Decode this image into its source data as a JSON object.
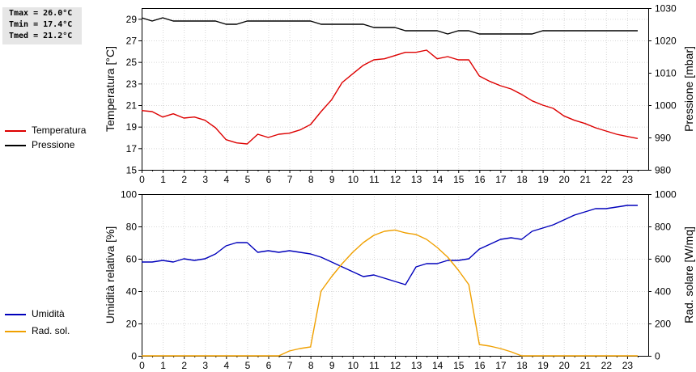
{
  "stats": {
    "tmax": "Tmax = 26.0°C",
    "tmin": "Tmin = 17.4°C",
    "tmed": "Tmed = 21.2°C"
  },
  "legend_top": [
    {
      "label": "Temperatura",
      "color": "#dd0000"
    },
    {
      "label": "Pressione",
      "color": "#000000"
    }
  ],
  "legend_bottom": [
    {
      "label": "Umidità",
      "color": "#0000bb"
    },
    {
      "label": "Rad. sol.",
      "color": "#f0a000"
    }
  ],
  "chart_data": [
    {
      "type": "line",
      "ylabel": "Temperatura [°C]",
      "y2label": "Pressione [mbar]",
      "xlim": [
        0,
        24
      ],
      "xticks": [
        "0",
        "1",
        "2",
        "3",
        "4",
        "5",
        "6",
        "7",
        "8",
        "9",
        "10",
        "11",
        "12",
        "13",
        "14",
        "15",
        "16",
        "17",
        "18",
        "19",
        "20",
        "21",
        "22",
        "23"
      ],
      "ylim": [
        15,
        30
      ],
      "yticks": [
        "15",
        "17",
        "19",
        "21",
        "23",
        "25",
        "27",
        "29"
      ],
      "y2lim": [
        980,
        1030
      ],
      "y2ticks": [
        "980",
        "990",
        "1000",
        "1010",
        "1020",
        "1030"
      ],
      "grid": true,
      "series": [
        {
          "name": "Temperatura",
          "axis": "left",
          "color": "#dd0000",
          "x": [
            0,
            0.5,
            1,
            1.5,
            2,
            2.5,
            3,
            3.5,
            4,
            4.5,
            5,
            5.5,
            6,
            6.5,
            7,
            7.5,
            8,
            8.5,
            9,
            9.5,
            10,
            10.5,
            11,
            11.5,
            12,
            12.5,
            13,
            13.5,
            14,
            14.5,
            15,
            15.5,
            16,
            16.5,
            17,
            17.5,
            18,
            18.5,
            19,
            19.5,
            20,
            20.5,
            21,
            21.5,
            22,
            22.5,
            23,
            23.5
          ],
          "y": [
            20.5,
            20.4,
            19.9,
            20.2,
            19.8,
            19.9,
            19.6,
            18.9,
            17.8,
            17.5,
            17.4,
            18.3,
            18.0,
            18.3,
            18.4,
            18.7,
            19.2,
            20.4,
            21.5,
            23.1,
            23.9,
            24.7,
            25.2,
            25.3,
            25.6,
            25.9,
            25.9,
            26.1,
            25.3,
            25.5,
            25.2,
            25.2,
            23.7,
            23.2,
            22.8,
            22.5,
            22.0,
            21.4,
            21.0,
            20.7,
            20.0,
            19.6,
            19.3,
            18.9,
            18.6,
            18.3,
            18.1,
            17.9
          ]
        },
        {
          "name": "Pressione",
          "axis": "right",
          "color": "#000000",
          "x": [
            0,
            0.5,
            1,
            1.5,
            2,
            2.5,
            3,
            3.5,
            4,
            4.5,
            5,
            5.5,
            6,
            6.5,
            7,
            7.5,
            8,
            8.5,
            9,
            9.5,
            10,
            10.5,
            11,
            11.5,
            12,
            12.5,
            13,
            13.5,
            14,
            14.5,
            15,
            15.5,
            16,
            16.5,
            17,
            17.5,
            18,
            18.5,
            19,
            19.5,
            20,
            20.5,
            21,
            21.5,
            22,
            22.5,
            23,
            23.5
          ],
          "y": [
            1027,
            1026,
            1027,
            1026,
            1026,
            1026,
            1026,
            1026,
            1025,
            1025,
            1026,
            1026,
            1026,
            1026,
            1026,
            1026,
            1026,
            1025,
            1025,
            1025,
            1025,
            1025,
            1024,
            1024,
            1024,
            1023,
            1023,
            1023,
            1023,
            1022,
            1023,
            1023,
            1022,
            1022,
            1022,
            1022,
            1022,
            1022,
            1023,
            1023,
            1023,
            1023,
            1023,
            1023,
            1023,
            1023,
            1023,
            1023
          ]
        }
      ]
    },
    {
      "type": "line",
      "ylabel": "Umidità relativa [%]",
      "y2label": "Rad. solare [W/mq]",
      "xlim": [
        0,
        24
      ],
      "xticks": [
        "0",
        "1",
        "2",
        "3",
        "4",
        "5",
        "6",
        "7",
        "8",
        "9",
        "10",
        "11",
        "12",
        "13",
        "14",
        "15",
        "16",
        "17",
        "18",
        "19",
        "20",
        "21",
        "22",
        "23"
      ],
      "ylim": [
        0,
        100
      ],
      "yticks": [
        "0",
        "20",
        "40",
        "60",
        "80",
        "100"
      ],
      "y2lim": [
        0,
        1000
      ],
      "y2ticks": [
        "0",
        "200",
        "400",
        "600",
        "800",
        "1000"
      ],
      "grid": true,
      "series": [
        {
          "name": "Umidità",
          "axis": "left",
          "color": "#0000bb",
          "x": [
            0,
            0.5,
            1,
            1.5,
            2,
            2.5,
            3,
            3.5,
            4,
            4.5,
            5,
            5.5,
            6,
            6.5,
            7,
            7.5,
            8,
            8.5,
            9,
            9.5,
            10,
            10.5,
            11,
            11.5,
            12,
            12.5,
            13,
            13.5,
            14,
            14.5,
            15,
            15.5,
            16,
            16.5,
            17,
            17.5,
            18,
            18.5,
            19,
            19.5,
            20,
            20.5,
            21,
            21.5,
            22,
            22.5,
            23,
            23.5
          ],
          "y": [
            58,
            58,
            59,
            58,
            60,
            59,
            60,
            63,
            68,
            70,
            70,
            64,
            65,
            64,
            65,
            64,
            63,
            61,
            58,
            55,
            52,
            49,
            50,
            48,
            46,
            44,
            55,
            57,
            57,
            59,
            59,
            60,
            66,
            69,
            72,
            73,
            72,
            77,
            79,
            81,
            84,
            87,
            89,
            91,
            91,
            92,
            93,
            93
          ]
        },
        {
          "name": "Rad. sol.",
          "axis": "right",
          "color": "#f0a000",
          "x": [
            0,
            0.5,
            1,
            1.5,
            2,
            2.5,
            3,
            3.5,
            4,
            4.5,
            5,
            5.5,
            6,
            6.5,
            7,
            7.5,
            8,
            8.5,
            9,
            9.5,
            10,
            10.5,
            11,
            11.5,
            12,
            12.5,
            13,
            13.5,
            14,
            14.5,
            15,
            15.5,
            16,
            16.5,
            17,
            17.5,
            18,
            18.5,
            19,
            19.5,
            20,
            20.5,
            21,
            21.5,
            22,
            22.5,
            23,
            23.5
          ],
          "y": [
            0,
            0,
            0,
            0,
            0,
            0,
            0,
            0,
            0,
            0,
            0,
            0,
            0,
            0,
            30,
            45,
            55,
            400,
            490,
            570,
            640,
            700,
            745,
            770,
            778,
            760,
            750,
            720,
            670,
            610,
            530,
            440,
            70,
            60,
            45,
            25,
            0,
            0,
            0,
            0,
            0,
            0,
            0,
            0,
            0,
            0,
            0,
            0
          ]
        }
      ]
    }
  ]
}
